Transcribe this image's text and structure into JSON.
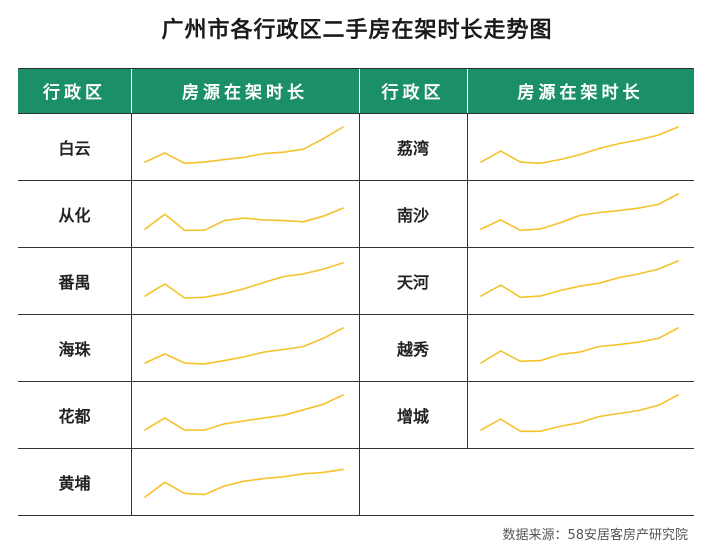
{
  "title": "广州市各行政区二手房在架时长走势图",
  "headers": {
    "district": "行政区",
    "duration": "房源在架时长"
  },
  "source": "数据来源：58安居客房产研究院",
  "watermark": "58安居客房产研究院",
  "colors": {
    "header_bg": "#1b8f6a",
    "line": "#f5c22b"
  },
  "chart_data": {
    "type": "line",
    "charts": [
      {
        "district": "白云",
        "values": [
          0.05,
          0.3,
          0.02,
          0.05,
          0.12,
          0.18,
          0.28,
          0.32,
          0.4,
          0.68,
          1.0
        ]
      },
      {
        "district": "从化",
        "values": [
          0.05,
          0.45,
          0.02,
          0.02,
          0.28,
          0.35,
          0.3,
          0.28,
          0.25,
          0.4,
          0.62
        ]
      },
      {
        "district": "番禺",
        "values": [
          0.05,
          0.38,
          0.0,
          0.02,
          0.12,
          0.25,
          0.42,
          0.58,
          0.65,
          0.78,
          0.95
        ]
      },
      {
        "district": "海珠",
        "values": [
          0.05,
          0.3,
          0.05,
          0.03,
          0.12,
          0.22,
          0.35,
          0.42,
          0.5,
          0.72,
          1.0
        ]
      },
      {
        "district": "花都",
        "values": [
          0.05,
          0.38,
          0.05,
          0.05,
          0.22,
          0.3,
          0.38,
          0.45,
          0.6,
          0.75,
          1.0
        ]
      },
      {
        "district": "黄埔",
        "values": [
          0.05,
          0.45,
          0.15,
          0.12,
          0.35,
          0.48,
          0.55,
          0.6,
          0.68,
          0.72,
          0.8
        ]
      },
      {
        "district": "荔湾",
        "values": [
          0.05,
          0.35,
          0.05,
          0.02,
          0.12,
          0.25,
          0.42,
          0.55,
          0.65,
          0.78,
          1.0
        ]
      },
      {
        "district": "南沙",
        "values": [
          0.05,
          0.3,
          0.02,
          0.05,
          0.22,
          0.42,
          0.5,
          0.55,
          0.62,
          0.72,
          1.0
        ]
      },
      {
        "district": "天河",
        "values": [
          0.05,
          0.35,
          0.02,
          0.05,
          0.2,
          0.32,
          0.4,
          0.55,
          0.65,
          0.78,
          1.0
        ]
      },
      {
        "district": "越秀",
        "values": [
          0.05,
          0.38,
          0.1,
          0.12,
          0.28,
          0.35,
          0.5,
          0.55,
          0.62,
          0.72,
          1.0
        ]
      },
      {
        "district": "增城",
        "values": [
          0.05,
          0.35,
          0.02,
          0.02,
          0.15,
          0.25,
          0.42,
          0.5,
          0.58,
          0.72,
          1.0
        ]
      }
    ]
  }
}
